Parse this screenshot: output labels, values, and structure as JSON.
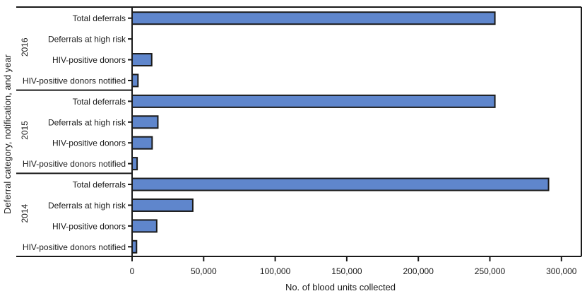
{
  "chart_data": {
    "type": "bar",
    "orientation": "horizontal",
    "title": "",
    "xlabel": "No. of blood units collected",
    "ylabel": "Deferral category, notification, and year",
    "xlim": [
      0,
      315000
    ],
    "xticks": [
      0,
      50000,
      100000,
      150000,
      200000,
      250000,
      300000
    ],
    "xtick_labels": [
      "0",
      "50,000",
      "100,000",
      "150,000",
      "200,000",
      "250,000",
      "300,000"
    ],
    "grid": false,
    "legend": null,
    "bar_color": "#5f86cc",
    "bar_edge_color": "#1a1a1a",
    "groups": [
      {
        "year": "2016",
        "categories": [
          "Total deferrals",
          "Deferrals at high risk",
          "HIV-positive donors",
          "HIV-positive donors notified"
        ],
        "values": [
          253500,
          0,
          13700,
          4100
        ]
      },
      {
        "year": "2015",
        "categories": [
          "Total deferrals",
          "Deferrals at high risk",
          "HIV-positive donors",
          "HIV-positive donors notified"
        ],
        "values": [
          253500,
          18000,
          14000,
          3500
        ]
      },
      {
        "year": "2014",
        "categories": [
          "Total deferrals",
          "Deferrals at high risk",
          "HIV-positive donors",
          "HIV-positive donors notified"
        ],
        "values": [
          291000,
          42400,
          17200,
          3100
        ]
      }
    ]
  }
}
